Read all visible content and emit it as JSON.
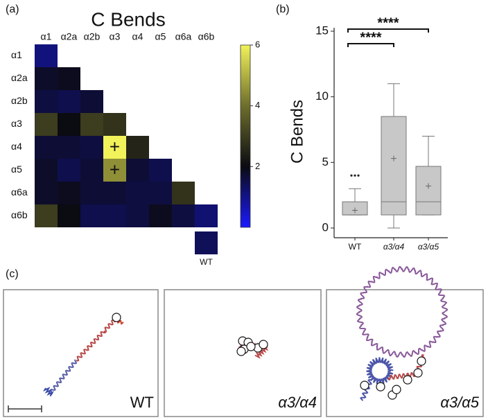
{
  "panel_labels": [
    "(a)",
    "(b)",
    "(c)"
  ],
  "chart_data": [
    {
      "type": "heatmap",
      "title": "C Bends",
      "x": [
        "α1",
        "α2a",
        "α2b",
        "α3",
        "α4",
        "α5",
        "α6a",
        "α6b"
      ],
      "y": [
        "α1",
        "α2a",
        "α2b",
        "α3",
        "α4",
        "α5",
        "α6a",
        "α6b"
      ],
      "values": [
        [
          1.1
        ],
        [
          1.8,
          1.9
        ],
        [
          1.6,
          1.5,
          1.7
        ],
        [
          3.0,
          2.0,
          3.0,
          2.8
        ],
        [
          1.7,
          1.7,
          1.6,
          6.0,
          2.5
        ],
        [
          1.8,
          1.5,
          1.7,
          4.5,
          1.7,
          1.5
        ],
        [
          1.8,
          1.9,
          1.7,
          1.7,
          1.6,
          1.6,
          2.8
        ],
        [
          3.0,
          2.0,
          1.5,
          1.5,
          1.6,
          1.9,
          1.6,
          1.2
        ]
      ],
      "cell_labels": [
        [
          null
        ],
        [
          null,
          null
        ],
        [
          null,
          null,
          null
        ],
        [
          null,
          null,
          null,
          null
        ],
        [
          null,
          null,
          null,
          "+",
          null
        ],
        [
          null,
          null,
          null,
          "+",
          null,
          null
        ],
        [
          null,
          null,
          null,
          null,
          null,
          null,
          null
        ],
        [
          null,
          null,
          null,
          null,
          null,
          null,
          null,
          null
        ]
      ],
      "reference": {
        "label": "WT",
        "value": 1.4
      },
      "colormap": [
        "#1a1aff",
        "#0b0b12",
        "#6e6e2c",
        "#f2f25a"
      ],
      "clim": [
        0,
        6
      ],
      "cticks": [
        2,
        4,
        6
      ]
    },
    {
      "type": "box",
      "ylabel": "C Bends",
      "categories": [
        "WT",
        "α3/α4",
        "α3/α5"
      ],
      "min": [
        1,
        0,
        1
      ],
      "q1": [
        1,
        1,
        1
      ],
      "median": [
        1,
        2,
        2
      ],
      "q3": [
        2,
        8.5,
        4.7
      ],
      "max": [
        3,
        11,
        7
      ],
      "mean": [
        1.35,
        5.3,
        3.2
      ],
      "outliers": [
        [
          4,
          4,
          4
        ],
        [],
        []
      ],
      "color": "#c8c8c8",
      "ylim": [
        0,
        15
      ],
      "yticks": [
        0,
        5,
        10,
        15
      ],
      "comparisons": [
        {
          "between": [
            "WT",
            "α3/α4"
          ],
          "label": "****"
        },
        {
          "between": [
            "WT",
            "α3/α5"
          ],
          "label": "****"
        }
      ]
    }
  ],
  "images": {
    "labels": [
      "WT",
      "α3/α4",
      "α3/α5"
    ]
  }
}
